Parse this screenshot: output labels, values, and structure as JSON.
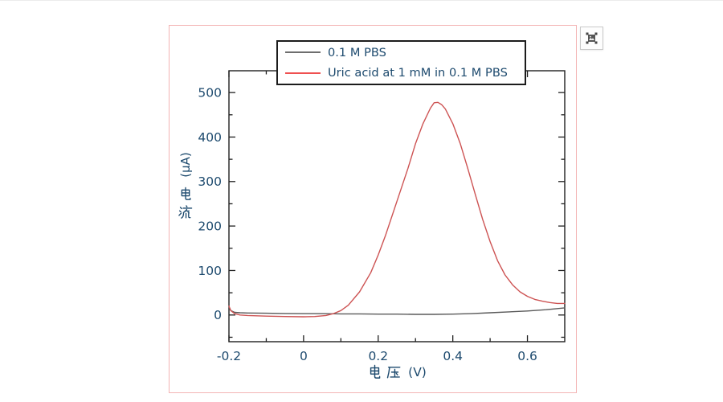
{
  "theme": {
    "text_color": "#1d4a6e",
    "axis_color": "#1f1f1f",
    "figure_border_color": "#f3b4b4",
    "background": "#ffffff"
  },
  "toolbar": {
    "embedded_image_button": "image-with-selection-handles"
  },
  "legend": {
    "entries": [
      {
        "label": "0.1 M PBS",
        "color": "#6e6e6e"
      },
      {
        "label": "Uric acid at 1 mM in 0.1 M PBS",
        "color": "#ef5050"
      }
    ]
  },
  "axes": {
    "x": {
      "label": "电压 (V)",
      "cjk": "电压",
      "unit": "(V)",
      "major_ticks": [
        -0.2,
        0,
        0.2,
        0.4,
        0.6
      ],
      "tick_labels": [
        "-0.2",
        "0",
        "0.2",
        "0.4",
        "0.6"
      ],
      "minor_ticks": [
        -0.1,
        0.1,
        0.3,
        0.5
      ]
    },
    "y": {
      "label": "电流 (μA)",
      "cjk": "电流",
      "unit": "(μA)",
      "major_ticks": [
        0,
        100,
        200,
        300,
        400,
        500
      ],
      "tick_labels": [
        "0",
        "100",
        "200",
        "300",
        "400",
        "500"
      ],
      "minor_ticks": [
        -50,
        50,
        150,
        250,
        350,
        450
      ]
    }
  },
  "chart_data": {
    "type": "line",
    "title": "",
    "xlabel": "电压 (V)",
    "ylabel": "电流 (μA)",
    "xlim": [
      -0.2,
      0.7
    ],
    "ylim": [
      -60,
      549
    ],
    "grid": false,
    "legend_position": "top-center",
    "tick_direction": "in",
    "series": [
      {
        "name": "0.1 M PBS",
        "color": "#5a5a5a",
        "points": [
          [
            -0.2,
            18
          ],
          [
            -0.195,
            10
          ],
          [
            -0.185,
            6
          ],
          [
            -0.17,
            5
          ],
          [
            -0.15,
            4.5
          ],
          [
            -0.1,
            4
          ],
          [
            -0.05,
            3.5
          ],
          [
            0,
            3
          ],
          [
            0.05,
            3
          ],
          [
            0.1,
            2.5
          ],
          [
            0.15,
            2.5
          ],
          [
            0.2,
            2
          ],
          [
            0.25,
            2
          ],
          [
            0.3,
            1.5
          ],
          [
            0.35,
            1.5
          ],
          [
            0.4,
            2
          ],
          [
            0.45,
            3
          ],
          [
            0.5,
            5
          ],
          [
            0.55,
            7
          ],
          [
            0.6,
            9
          ],
          [
            0.65,
            12
          ],
          [
            0.7,
            16
          ]
        ]
      },
      {
        "name": "Uric acid at 1 mM in 0.1 M PBS",
        "color": "#cd5353",
        "points": [
          [
            -0.2,
            20
          ],
          [
            -0.195,
            10
          ],
          [
            -0.185,
            3
          ],
          [
            -0.17,
            0
          ],
          [
            -0.15,
            -1
          ],
          [
            -0.1,
            -2.5
          ],
          [
            -0.05,
            -3.5
          ],
          [
            0,
            -4
          ],
          [
            0.03,
            -3.5
          ],
          [
            0.06,
            -1
          ],
          [
            0.08,
            3
          ],
          [
            0.1,
            10
          ],
          [
            0.12,
            22
          ],
          [
            0.15,
            52
          ],
          [
            0.18,
            95
          ],
          [
            0.2,
            135
          ],
          [
            0.22,
            180
          ],
          [
            0.25,
            255
          ],
          [
            0.28,
            330
          ],
          [
            0.3,
            385
          ],
          [
            0.32,
            430
          ],
          [
            0.34,
            465
          ],
          [
            0.35,
            477
          ],
          [
            0.36,
            478
          ],
          [
            0.37,
            473
          ],
          [
            0.38,
            463
          ],
          [
            0.4,
            430
          ],
          [
            0.42,
            385
          ],
          [
            0.44,
            330
          ],
          [
            0.46,
            272
          ],
          [
            0.48,
            215
          ],
          [
            0.5,
            165
          ],
          [
            0.52,
            122
          ],
          [
            0.54,
            90
          ],
          [
            0.56,
            68
          ],
          [
            0.58,
            52
          ],
          [
            0.6,
            42
          ],
          [
            0.62,
            35
          ],
          [
            0.64,
            31
          ],
          [
            0.66,
            28
          ],
          [
            0.68,
            26
          ],
          [
            0.7,
            26
          ]
        ]
      }
    ]
  }
}
